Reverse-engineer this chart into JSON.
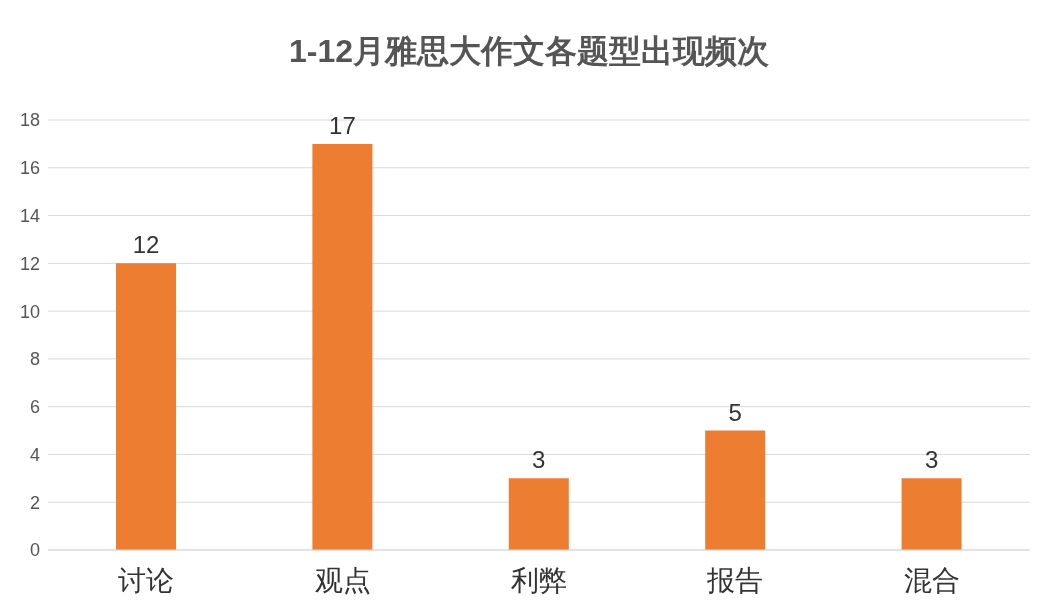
{
  "chart_data": {
    "type": "bar",
    "title": "1-12月雅思大作文各题型出现频次",
    "categories": [
      "讨论",
      "观点",
      "利弊",
      "报告",
      "混合"
    ],
    "values": [
      12,
      17,
      3,
      5,
      3
    ],
    "color": "#ed7d31",
    "ylim": [
      0,
      18
    ],
    "yticks": [
      0,
      2,
      4,
      6,
      8,
      10,
      12,
      14,
      16,
      18
    ],
    "grid": "y",
    "data_labels": true
  }
}
